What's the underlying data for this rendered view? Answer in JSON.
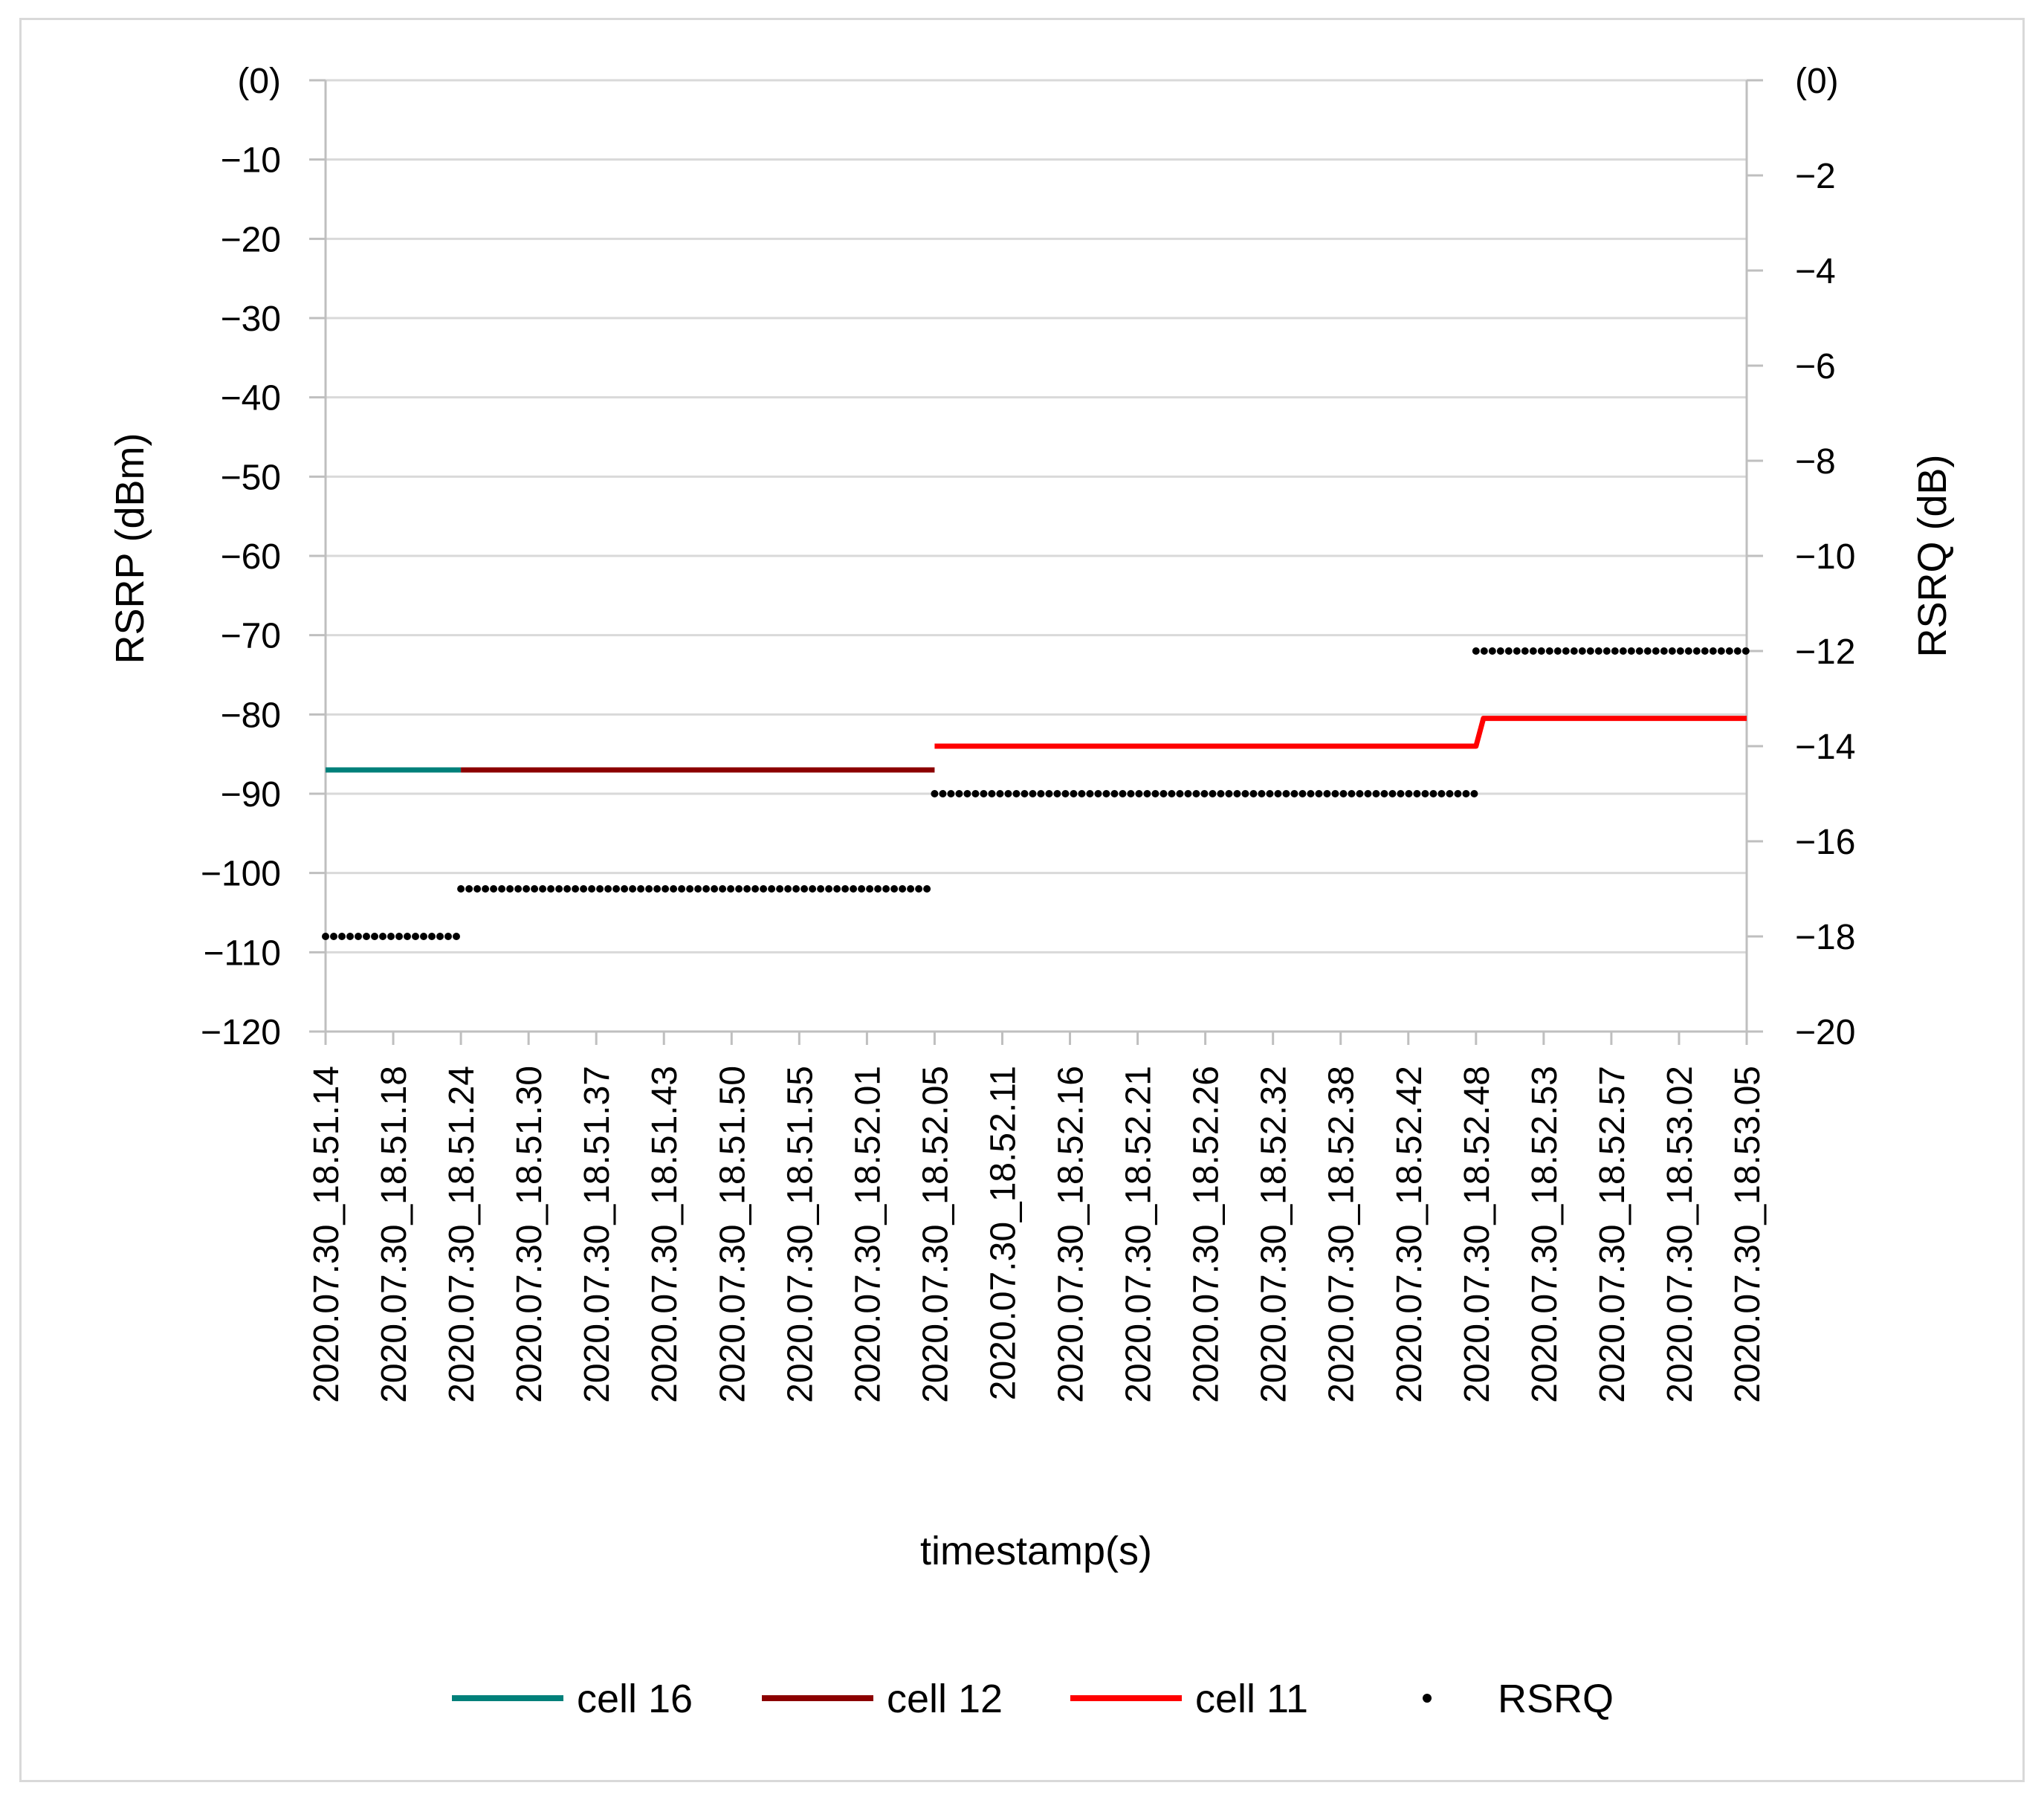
{
  "chart_data": {
    "type": "line",
    "xlabel": "timestamp(s)",
    "ylabel_left": "RSRP (dBm)",
    "ylabel_right": "RSRQ (dB)",
    "grid": true,
    "legend_placement": "bottom",
    "x_tick_labels": [
      "2020.07.30_18.51.14",
      "2020.07.30_18.51.18",
      "2020.07.30_18.51.24",
      "2020.07.30_18.51.30",
      "2020.07.30_18.51.37",
      "2020.07.30_18.51.43",
      "2020.07.30_18.51.50",
      "2020.07.30_18.51.55",
      "2020.07.30_18.52.01",
      "2020.07.30_18.52.05",
      "2020.07.30_18.52.11",
      "2020.07.30_18.52.16",
      "2020.07.30_18.52.21",
      "2020.07.30_18.52.26",
      "2020.07.30_18.52.32",
      "2020.07.30_18.52.38",
      "2020.07.30_18.52.42",
      "2020.07.30_18.52.48",
      "2020.07.30_18.52.53",
      "2020.07.30_18.52.57",
      "2020.07.30_18.53.02",
      "2020.07.30_18.53.05"
    ],
    "left_axis": {
      "ylim": [
        -120,
        0
      ],
      "tick_values": [
        0,
        -10,
        -20,
        -30,
        -40,
        -50,
        -60,
        -70,
        -80,
        -90,
        -100,
        -110,
        -120
      ],
      "tick_labels": [
        "(0)",
        "−10",
        "−20",
        "−30",
        "−40",
        "−50",
        "−60",
        "−70",
        "−80",
        "−90",
        "−100",
        "−110",
        "−120"
      ]
    },
    "right_axis": {
      "ylim": [
        -20,
        0
      ],
      "tick_values": [
        0,
        -2,
        -4,
        -6,
        -8,
        -10,
        -12,
        -14,
        -16,
        -18,
        -20
      ],
      "tick_labels": [
        "(0)",
        "−2",
        "−4",
        "−6",
        "−8",
        "−10",
        "−12",
        "−14",
        "−16",
        "−18",
        "−20"
      ]
    },
    "series": [
      {
        "name": "cell 16",
        "axis": "left",
        "style": "line",
        "color": "#00807a",
        "points": [
          [
            "2020.07.30_18.51.14",
            -87
          ],
          [
            "2020.07.30_18.51.24",
            -87
          ]
        ]
      },
      {
        "name": "cell 12",
        "axis": "left",
        "style": "line",
        "color": "#8b0000",
        "points": [
          [
            "2020.07.30_18.51.24",
            -87
          ],
          [
            "2020.07.30_18.52.05",
            -87
          ]
        ]
      },
      {
        "name": "cell 11",
        "axis": "left",
        "style": "line",
        "color": "#ff0000",
        "points": [
          [
            "2020.07.30_18.52.05",
            -84
          ],
          [
            "2020.07.30_18.52.48",
            -84
          ],
          [
            "2020.07.30_18.52.48",
            -80.5
          ],
          [
            "2020.07.30_18.53.05",
            -80.5
          ]
        ]
      },
      {
        "name": "RSRQ",
        "axis": "right",
        "style": "dots",
        "color": "#000000",
        "segments": [
          {
            "from": "2020.07.30_18.51.14",
            "to": "2020.07.30_18.51.24",
            "value": -18
          },
          {
            "from": "2020.07.30_18.51.24",
            "to": "2020.07.30_18.52.05",
            "value": -17
          },
          {
            "from": "2020.07.30_18.52.05",
            "to": "2020.07.30_18.52.48",
            "value": -15
          },
          {
            "from": "2020.07.30_18.52.48",
            "to": "2020.07.30_18.53.05",
            "value": -12
          }
        ]
      }
    ]
  }
}
